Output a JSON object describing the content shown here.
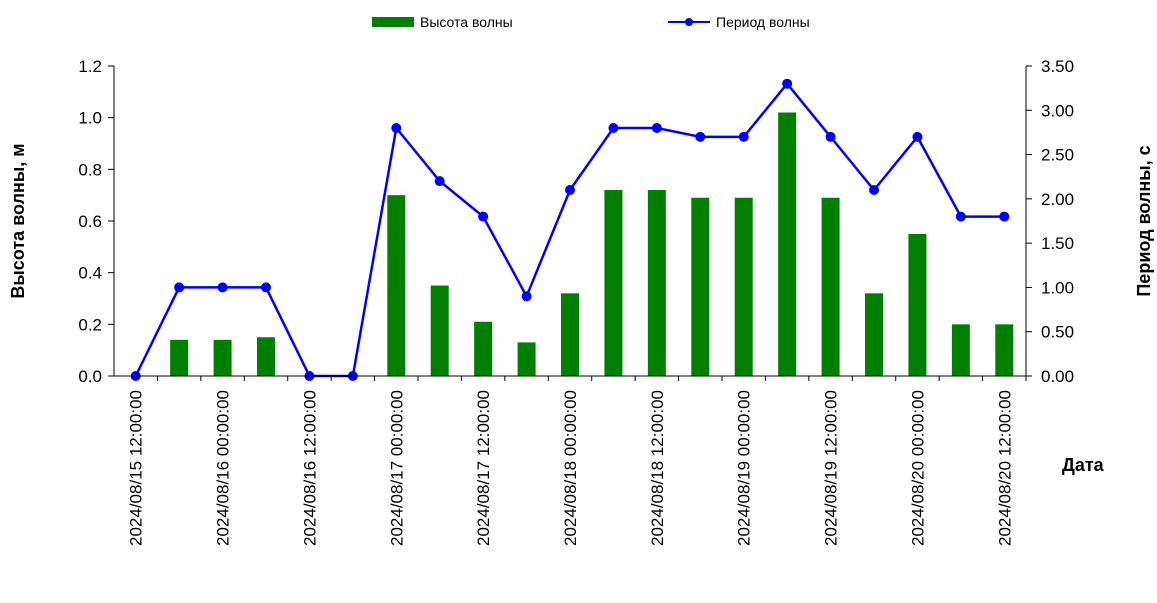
{
  "chart_data": {
    "type": "bar+line",
    "x": [
      "2024/08/15 12:00:00",
      "2024/08/15 18:00:00",
      "2024/08/16 00:00:00",
      "2024/08/16 06:00:00",
      "2024/08/16 12:00:00",
      "2024/08/16 18:00:00",
      "2024/08/17 00:00:00",
      "2024/08/17 06:00:00",
      "2024/08/17 12:00:00",
      "2024/08/17 18:00:00",
      "2024/08/18 00:00:00",
      "2024/08/18 06:00:00",
      "2024/08/18 12:00:00",
      "2024/08/18 18:00:00",
      "2024/08/19 00:00:00",
      "2024/08/19 06:00:00",
      "2024/08/19 12:00:00",
      "2024/08/19 18:00:00",
      "2024/08/20 00:00:00",
      "2024/08/20 06:00:00",
      "2024/08/20 12:00:00"
    ],
    "xtick_labels": [
      "2024/08/15 12:00:00",
      "2024/08/16 00:00:00",
      "2024/08/16 12:00:00",
      "2024/08/17 00:00:00",
      "2024/08/17 12:00:00",
      "2024/08/18 00:00:00",
      "2024/08/18 12:00:00",
      "2024/08/19 00:00:00",
      "2024/08/19 12:00:00",
      "2024/08/20 00:00:00",
      "2024/08/20 12:00:00"
    ],
    "series": [
      {
        "name": "Высота волны",
        "type": "bar",
        "axis": "left",
        "color": "#008000",
        "values": [
          null,
          0.14,
          0.14,
          0.15,
          null,
          null,
          0.7,
          0.35,
          0.21,
          0.13,
          0.32,
          0.72,
          0.72,
          0.69,
          0.69,
          1.02,
          0.69,
          0.32,
          0.55,
          0.2,
          0.2
        ]
      },
      {
        "name": "Период волны",
        "type": "line",
        "axis": "right",
        "color": "#0000ff",
        "values": [
          0.0,
          1.0,
          1.0,
          1.0,
          0.0,
          0.0,
          2.8,
          2.2,
          1.8,
          0.9,
          2.1,
          2.8,
          2.8,
          2.7,
          2.7,
          3.3,
          2.7,
          2.1,
          2.7,
          1.8,
          1.8
        ]
      }
    ],
    "y_left": {
      "label": "Высота волны, м",
      "lim": [
        0,
        1.2
      ],
      "ticks": [
        "0.0",
        "0.2",
        "0.4",
        "0.6",
        "0.8",
        "1.0",
        "1.2"
      ]
    },
    "y_right": {
      "label": "Период волны, с",
      "lim": [
        0,
        3.5
      ],
      "ticks": [
        "0.00",
        "0.50",
        "1.00",
        "1.50",
        "2.00",
        "2.50",
        "3.00",
        "3.50"
      ]
    },
    "xlabel": "Дата",
    "legend_position": "top-center",
    "grid": false
  }
}
